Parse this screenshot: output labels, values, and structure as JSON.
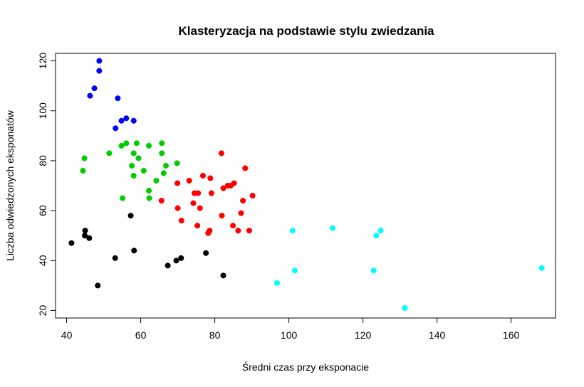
{
  "chart_data": {
    "type": "scatter",
    "title": "Klasteryzacja na podstawie stylu zwiedzania",
    "xlabel": "Średni czas przy eksponacie",
    "ylabel": "Liczba odwiedzonych eksponatów",
    "xlim": [
      37,
      172
    ],
    "ylim": [
      17,
      123
    ],
    "xticks": [
      40,
      60,
      80,
      100,
      120,
      140,
      160
    ],
    "yticks": [
      20,
      40,
      60,
      80,
      100,
      120
    ],
    "grid": false,
    "legend": "none",
    "series": [
      {
        "color": "#0000ff",
        "points": [
          [
            48.8,
            120
          ],
          [
            48.8,
            116
          ],
          [
            47.5,
            109
          ],
          [
            46.3,
            106
          ],
          [
            53.8,
            105
          ],
          [
            58.1,
            96
          ],
          [
            56.1,
            97
          ],
          [
            54.8,
            96
          ],
          [
            53.2,
            93
          ]
        ]
      },
      {
        "color": "#00cd00",
        "points": [
          [
            44.8,
            81
          ],
          [
            44.4,
            76
          ],
          [
            51.5,
            83
          ],
          [
            54.8,
            86
          ],
          [
            56.1,
            87
          ],
          [
            58.9,
            87
          ],
          [
            62.2,
            86
          ],
          [
            65.7,
            87
          ],
          [
            65.7,
            83
          ],
          [
            58.1,
            83
          ],
          [
            59.4,
            81
          ],
          [
            57.6,
            78
          ],
          [
            60.8,
            76
          ],
          [
            58.1,
            74
          ],
          [
            66.8,
            78
          ],
          [
            66.2,
            75
          ],
          [
            64.2,
            72
          ],
          [
            62.2,
            68
          ],
          [
            62.3,
            65
          ],
          [
            55.1,
            65
          ],
          [
            69.8,
            79
          ]
        ]
      },
      {
        "color": "#ff0000",
        "points": [
          [
            81.8,
            83
          ],
          [
            88.2,
            77
          ],
          [
            76.8,
            74
          ],
          [
            78.8,
            73
          ],
          [
            73.1,
            72
          ],
          [
            69.9,
            71
          ],
          [
            83.5,
            70
          ],
          [
            85.2,
            71
          ],
          [
            82.3,
            69
          ],
          [
            84.3,
            70
          ],
          [
            74.5,
            67
          ],
          [
            75.5,
            67
          ],
          [
            79.1,
            67
          ],
          [
            90.2,
            66
          ],
          [
            65.6,
            64
          ],
          [
            87.6,
            64
          ],
          [
            74.2,
            63
          ],
          [
            70,
            61
          ],
          [
            76,
            61
          ],
          [
            87.1,
            59
          ],
          [
            81.9,
            58
          ],
          [
            71,
            56
          ],
          [
            75.3,
            54
          ],
          [
            84.9,
            54
          ],
          [
            78.6,
            52
          ],
          [
            86.3,
            52
          ],
          [
            89.3,
            52
          ],
          [
            78.2,
            51
          ]
        ]
      },
      {
        "color": "#000000",
        "points": [
          [
            57.3,
            58
          ],
          [
            45,
            52
          ],
          [
            44.9,
            50
          ],
          [
            46.1,
            49
          ],
          [
            41.3,
            47
          ],
          [
            58.2,
            44
          ],
          [
            77.6,
            43
          ],
          [
            53.1,
            41
          ],
          [
            70.9,
            41
          ],
          [
            69.6,
            40
          ],
          [
            67.3,
            38
          ],
          [
            82.3,
            34
          ],
          [
            48.4,
            30
          ]
        ]
      },
      {
        "color": "#00ffff",
        "points": [
          [
            101,
            52
          ],
          [
            111.8,
            53
          ],
          [
            124.8,
            52
          ],
          [
            123.6,
            50
          ],
          [
            101.6,
            36
          ],
          [
            122.9,
            36
          ],
          [
            96.8,
            31
          ],
          [
            131.3,
            21
          ],
          [
            168.3,
            37
          ]
        ]
      }
    ]
  }
}
